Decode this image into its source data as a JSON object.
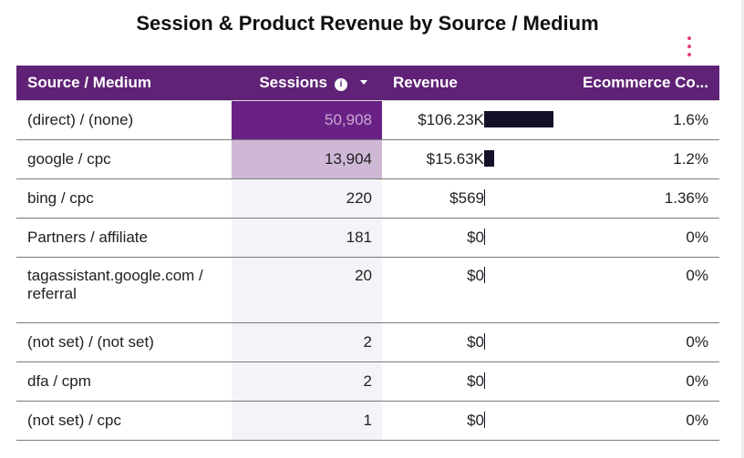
{
  "title": "Session & Product Revenue by Source / Medium",
  "colors": {
    "header_bg": "#5f2276",
    "sessions_high": "#6a2185",
    "sessions_mid": "#cfb7d6",
    "bar": "#141028",
    "menu": "#e8436d"
  },
  "icons": {
    "menu": "more-vert-icon",
    "info": "info-icon",
    "sort": "sort-desc-icon"
  },
  "headers": {
    "source": "Source / Medium",
    "sessions": "Sessions",
    "revenue": "Revenue",
    "ecommerce": "Ecommerce Co..."
  },
  "chart_data": {
    "type": "table",
    "title": "Session & Product Revenue by Source / Medium",
    "columns": [
      "Source / Medium",
      "Sessions",
      "Revenue",
      "Ecommerce Co..."
    ],
    "revenue_max": 106230,
    "rows": [
      {
        "source": "(direct) / (none)",
        "sessions": "50,908",
        "revenue_label": "$106.23K",
        "revenue": 106230,
        "ecommerce": "1.6%"
      },
      {
        "source": "google / cpc",
        "sessions": "13,904",
        "revenue_label": "$15.63K",
        "revenue": 15630,
        "ecommerce": "1.2%"
      },
      {
        "source": "bing / cpc",
        "sessions": "220",
        "revenue_label": "$569",
        "revenue": 569,
        "ecommerce": "1.36%"
      },
      {
        "source": "Partners / affiliate",
        "sessions": "181",
        "revenue_label": "$0",
        "revenue": 0,
        "ecommerce": "0%"
      },
      {
        "source": "tagassistant.google.com / referral",
        "sessions": "20",
        "revenue_label": "$0",
        "revenue": 0,
        "ecommerce": "0%"
      },
      {
        "source": "(not set) / (not set)",
        "sessions": "2",
        "revenue_label": "$0",
        "revenue": 0,
        "ecommerce": "0%"
      },
      {
        "source": "dfa / cpm",
        "sessions": "2",
        "revenue_label": "$0",
        "revenue": 0,
        "ecommerce": "0%"
      },
      {
        "source": "(not set) / cpc",
        "sessions": "1",
        "revenue_label": "$0",
        "revenue": 0,
        "ecommerce": "0%"
      }
    ]
  }
}
